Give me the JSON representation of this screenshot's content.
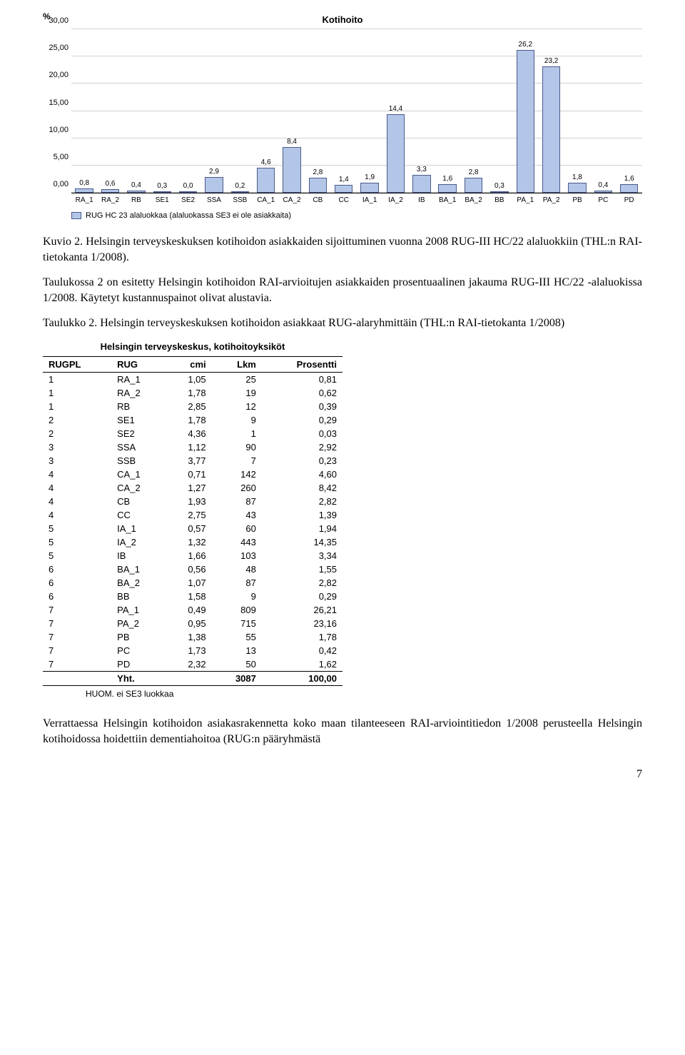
{
  "chart": {
    "title": "Kotihoito",
    "ylabel": "%",
    "ylim": [
      0,
      30
    ],
    "ytick_step": 5,
    "ytick_format": ",00",
    "categories": [
      "RA_1",
      "RA_2",
      "RB",
      "SE1",
      "SE2",
      "SSA",
      "SSB",
      "CA_1",
      "CA_2",
      "CB",
      "CC",
      "IA_1",
      "IA_2",
      "IB",
      "BA_1",
      "BA_2",
      "BB",
      "PA_1",
      "PA_2",
      "PB",
      "PC",
      "PD"
    ],
    "value_labels": [
      "0,8",
      "0,6",
      "0,4",
      "0,3",
      "0,0",
      "2,9",
      "0,2",
      "4,6",
      "8,4",
      "2,8",
      "1,4",
      "1,9",
      "14,4",
      "3,3",
      "1,6",
      "2,8",
      "0,3",
      "26,2",
      "23,2",
      "1,8",
      "0,4",
      "1,6"
    ],
    "values": [
      0.8,
      0.6,
      0.4,
      0.3,
      0.0,
      2.9,
      0.2,
      4.6,
      8.4,
      2.8,
      1.4,
      1.9,
      14.4,
      3.3,
      1.6,
      2.8,
      0.3,
      26.2,
      23.2,
      1.8,
      0.4,
      1.6
    ],
    "bar_color": "#b3c6e7",
    "bar_border": "#4a5a8a",
    "grid_color": "#d0d0d0",
    "legend": "RUG HC 23 alaluokkaa (alaluokassa SE3 ei ole asiakkaita)"
  },
  "caption_chart": "Kuvio 2. Helsingin terveyskeskuksen kotihoidon asiakkaiden sijoittuminen vuonna 2008 RUG-III HC/22 alaluokkiin (THL:n RAI-tietokanta 1/2008).",
  "para1": "Taulukossa 2 on esitetty Helsingin kotihoidon RAI-arvioitujen asiakkaiden prosentuaalinen jakauma RUG-III HC/22 -alaluokissa 1/2008. Käytetyt kustannuspainot olivat alustavia.",
  "caption_table": "Taulukko 2. Helsingin terveyskeskuksen kotihoidon asiakkaat RUG-alaryhmittäin (THL:n RAI-tietokanta 1/2008)",
  "table": {
    "title": "Helsingin terveyskeskus, kotihoitoyksiköt",
    "columns": [
      "RUGPL",
      "RUG",
      "cmi",
      "Lkm",
      "Prosentti"
    ],
    "rows": [
      [
        "1",
        "RA_1",
        "1,05",
        "25",
        "0,81"
      ],
      [
        "1",
        "RA_2",
        "1,78",
        "19",
        "0,62"
      ],
      [
        "1",
        "RB",
        "2,85",
        "12",
        "0,39"
      ],
      [
        "2",
        "SE1",
        "1,78",
        "9",
        "0,29"
      ],
      [
        "2",
        "SE2",
        "4,36",
        "1",
        "0,03"
      ],
      [
        "3",
        "SSA",
        "1,12",
        "90",
        "2,92"
      ],
      [
        "3",
        "SSB",
        "3,77",
        "7",
        "0,23"
      ],
      [
        "4",
        "CA_1",
        "0,71",
        "142",
        "4,60"
      ],
      [
        "4",
        "CA_2",
        "1,27",
        "260",
        "8,42"
      ],
      [
        "4",
        "CB",
        "1,93",
        "87",
        "2,82"
      ],
      [
        "4",
        "CC",
        "2,75",
        "43",
        "1,39"
      ],
      [
        "5",
        "IA_1",
        "0,57",
        "60",
        "1,94"
      ],
      [
        "5",
        "IA_2",
        "1,32",
        "443",
        "14,35"
      ],
      [
        "5",
        "IB",
        "1,66",
        "103",
        "3,34"
      ],
      [
        "6",
        "BA_1",
        "0,56",
        "48",
        "1,55"
      ],
      [
        "6",
        "BA_2",
        "1,07",
        "87",
        "2,82"
      ],
      [
        "6",
        "BB",
        "1,58",
        "9",
        "0,29"
      ],
      [
        "7",
        "PA_1",
        "0,49",
        "809",
        "26,21"
      ],
      [
        "7",
        "PA_2",
        "0,95",
        "715",
        "23,16"
      ],
      [
        "7",
        "PB",
        "1,38",
        "55",
        "1,78"
      ],
      [
        "7",
        "PC",
        "1,73",
        "13",
        "0,42"
      ],
      [
        "7",
        "PD",
        "2,32",
        "50",
        "1,62"
      ]
    ],
    "total_label": "Yht.",
    "total_lkm": "3087",
    "total_pct": "100,00",
    "note": "HUOM. ei SE3 luokkaa"
  },
  "para2": "Verrattaessa Helsingin kotihoidon asiakasrakennetta koko maan tilanteeseen RAI-arviointitiedon 1/2008 perusteella Helsingin kotihoidossa hoidettiin dementiahoitoa (RUG:n pääryhmästä",
  "page_number": "7"
}
